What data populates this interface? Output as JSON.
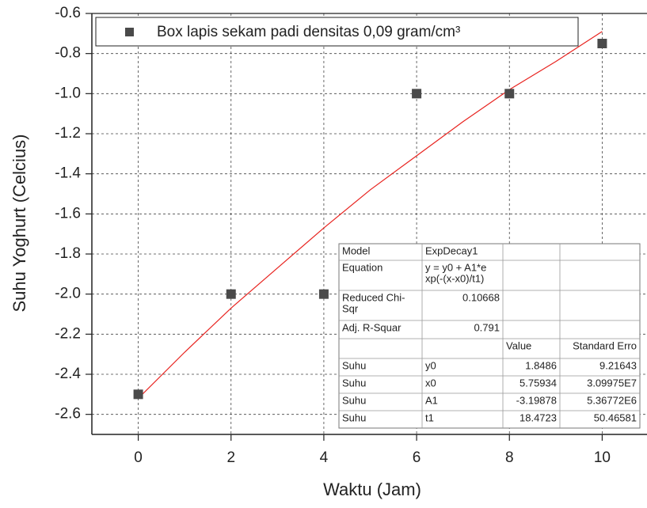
{
  "chart_data": {
    "type": "scatter",
    "xlabel": "Waktu (Jam)",
    "ylabel": "Suhu Yoghurt (Celcius)",
    "xlim": [
      -1,
      11
    ],
    "ylim": [
      -2.7,
      -0.6
    ],
    "xticks": [
      0,
      2,
      4,
      6,
      8,
      10
    ],
    "yticks": [
      -2.6,
      -2.4,
      -2.2,
      {
        "value": -2,
        "label": "-2.0"
      },
      -1.8,
      -1.6,
      -1.4,
      -1.2,
      {
        "value": -1,
        "label": "-1.0"
      },
      -0.8,
      -0.6
    ],
    "grid": true,
    "legend": "top-left",
    "series": [
      {
        "name": "Box lapis sekam padi densitas 0,09 gram/cm³",
        "color": "#4a4a4a",
        "x": [
          0,
          2,
          4,
          6,
          8,
          10
        ],
        "values": [
          -2.5,
          -2,
          -2,
          -1,
          -1,
          -0.75
        ]
      }
    ],
    "fit": {
      "color": "#e8231f",
      "x": [
        0,
        1,
        2,
        3,
        4,
        5,
        6,
        7,
        8,
        9,
        10
      ],
      "values": [
        -2.52,
        -2.29,
        -2.07,
        -1.87,
        -1.67,
        -1.48,
        -1.31,
        -1.14,
        -0.98,
        -0.84,
        -0.69
      ]
    },
    "table": {
      "rows": [
        [
          [
            "Model"
          ],
          [
            "ExpDecay1"
          ],
          null,
          null
        ],
        [
          [
            "Equation"
          ],
          [
            "y = y0 + A1*e",
            "xp(-(x-x0)/t1)"
          ],
          null,
          null
        ],
        [
          [
            "Reduced Chi-",
            "Sqr"
          ],
          [
            "0.10668"
          ],
          null,
          null
        ],
        [
          [
            "Adj. R-Squar"
          ],
          [
            "0.791"
          ],
          null,
          null
        ],
        [
          null,
          null,
          [
            "Value"
          ],
          [
            "Standard Erro"
          ]
        ],
        [
          [
            "Suhu"
          ],
          [
            "y0"
          ],
          [
            "1.8486"
          ],
          [
            "9.21643"
          ]
        ],
        [
          [
            "Suhu"
          ],
          [
            "x0"
          ],
          [
            "5.75934"
          ],
          [
            "3.09975E7"
          ]
        ],
        [
          [
            "Suhu"
          ],
          [
            "A1"
          ],
          [
            "-3.19878"
          ],
          [
            "5.36772E6"
          ]
        ],
        [
          [
            "Suhu"
          ],
          [
            "t1"
          ],
          [
            "18.4723"
          ],
          [
            "50.46581"
          ]
        ]
      ]
    }
  }
}
